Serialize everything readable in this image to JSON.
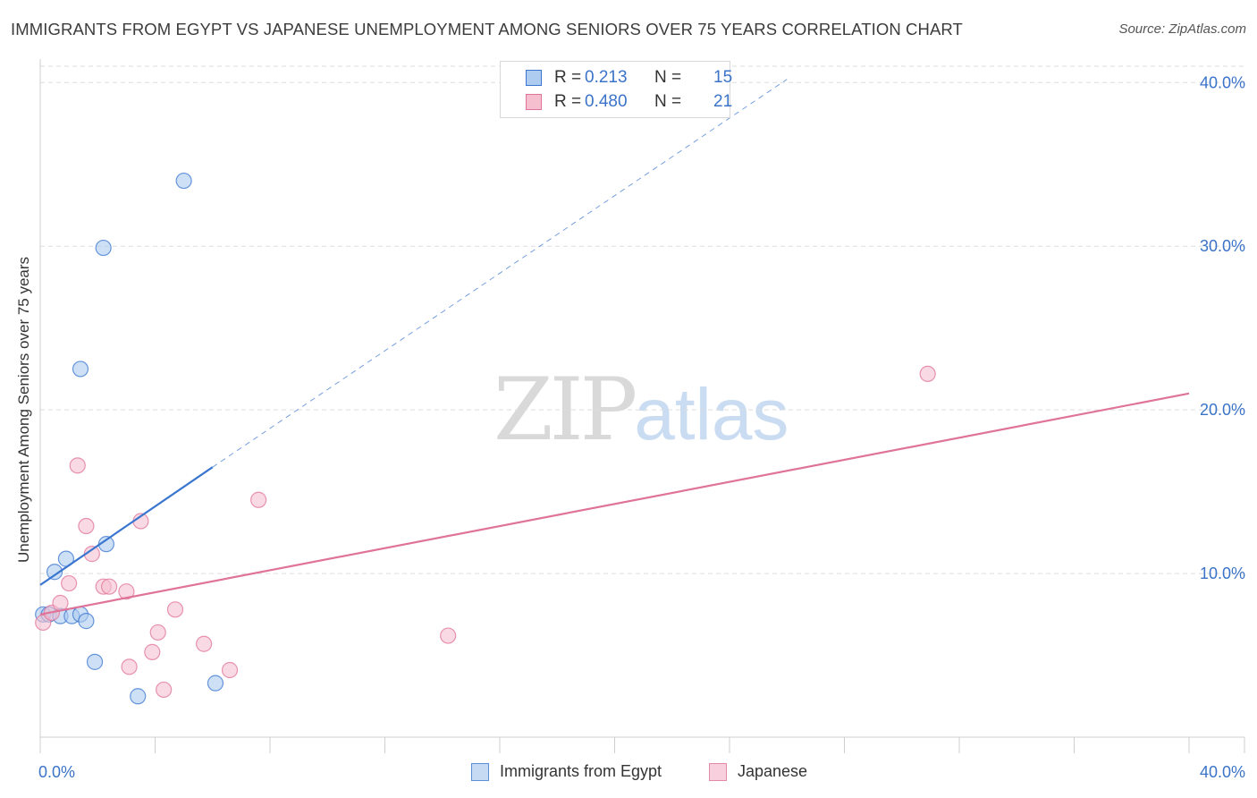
{
  "title": "IMMIGRANTS FROM EGYPT VS JAPANESE UNEMPLOYMENT AMONG SENIORS OVER 75 YEARS CORRELATION CHART",
  "source": "Source: ZipAtlas.com",
  "watermark": {
    "zip": "ZIP",
    "atlas": "atlas"
  },
  "colors": {
    "egypt": "#3a76d0",
    "japanese": "#e07398",
    "egypt_fill": "#aecbf0",
    "japanese_fill": "#f5bfd0",
    "tick_label": "#3a73c8"
  },
  "legend_top": [
    {
      "series": "egypt",
      "r_label": "R =",
      "r_value": "0.213",
      "n_label": "N =",
      "n_value": "15"
    },
    {
      "series": "japanese",
      "r_label": "R =",
      "r_value": "0.480",
      "n_label": "N =",
      "n_value": "21"
    }
  ],
  "legend_bottom": [
    {
      "series": "egypt",
      "label": "Immigrants from Egypt"
    },
    {
      "series": "japanese",
      "label": "Japanese"
    }
  ],
  "chart_data": {
    "type": "scatter",
    "title": "IMMIGRANTS FROM EGYPT VS JAPANESE UNEMPLOYMENT AMONG SENIORS OVER 75 YEARS CORRELATION CHART",
    "xlabel": "",
    "ylabel": "Unemployment Among Seniors over 75 years",
    "xlim": [
      0,
      40
    ],
    "ylim": [
      0,
      41
    ],
    "x_tick_labels": [
      "0.0%",
      "40.0%"
    ],
    "y_ticks": [
      10,
      20,
      30,
      40
    ],
    "y_tick_labels": [
      "10.0%",
      "20.0%",
      "30.0%",
      "40.0%"
    ],
    "grid": true,
    "series": [
      {
        "name": "Immigrants from Egypt",
        "color": "#3a76d0",
        "points": [
          [
            0.1,
            7.5
          ],
          [
            0.3,
            7.5
          ],
          [
            0.7,
            7.4
          ],
          [
            1.1,
            7.4
          ],
          [
            1.4,
            7.5
          ],
          [
            1.6,
            7.1
          ],
          [
            0.5,
            10.1
          ],
          [
            0.9,
            10.9
          ],
          [
            2.3,
            11.8
          ],
          [
            1.4,
            22.5
          ],
          [
            2.2,
            29.9
          ],
          [
            5.0,
            34.0
          ],
          [
            1.9,
            4.6
          ],
          [
            3.4,
            2.5
          ],
          [
            6.1,
            3.3
          ]
        ],
        "trend": {
          "x": [
            0,
            6.0
          ],
          "y": [
            9.3,
            16.5
          ],
          "dashed_to": [
            26.0,
            40.2
          ]
        }
      },
      {
        "name": "Japanese",
        "color": "#e07398",
        "points": [
          [
            0.1,
            7.0
          ],
          [
            0.4,
            7.6
          ],
          [
            0.7,
            8.2
          ],
          [
            1.0,
            9.4
          ],
          [
            1.3,
            16.6
          ],
          [
            1.6,
            12.9
          ],
          [
            1.8,
            11.2
          ],
          [
            2.2,
            9.2
          ],
          [
            2.4,
            9.2
          ],
          [
            3.0,
            8.9
          ],
          [
            3.5,
            13.2
          ],
          [
            4.1,
            6.4
          ],
          [
            3.9,
            5.2
          ],
          [
            4.7,
            7.8
          ],
          [
            5.7,
            5.7
          ],
          [
            6.6,
            4.1
          ],
          [
            3.1,
            4.3
          ],
          [
            4.3,
            2.9
          ],
          [
            7.6,
            14.5
          ],
          [
            14.2,
            6.2
          ],
          [
            30.9,
            22.2
          ]
        ],
        "trend": {
          "x": [
            0,
            40
          ],
          "y": [
            7.5,
            21.0
          ]
        }
      }
    ]
  }
}
